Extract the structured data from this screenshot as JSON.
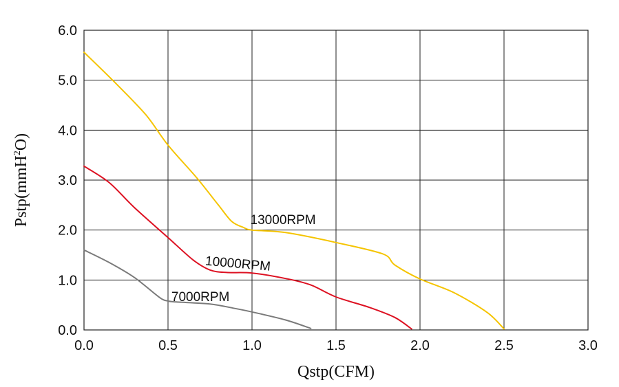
{
  "chart_data": {
    "type": "line",
    "title": "",
    "xlabel": "Qstp(CFM)",
    "ylabel": "Pstp(mmH2O)",
    "ylabel_main": "Pstp(mmH",
    "ylabel_sup": "2",
    "ylabel_tail": "O)",
    "xlim": [
      0,
      3.0
    ],
    "ylim": [
      0,
      6.0
    ],
    "xticks": [
      0,
      0.5,
      1.0,
      1.5,
      2.0,
      2.5,
      3.0
    ],
    "xtick_labels": [
      "0.0",
      "0.5",
      "1.0",
      "1.5",
      "2.0",
      "2.5",
      "3.0"
    ],
    "yticks": [
      0,
      1.0,
      2.0,
      3.0,
      4.0,
      5.0,
      6.0
    ],
    "ytick_labels": [
      "0.0",
      "1.0",
      "2.0",
      "3.0",
      "4.0",
      "5.0",
      "6.0"
    ],
    "grid": true,
    "series": [
      {
        "name": "13000RPM",
        "color": "#f5c400",
        "x": [
          0,
          0.2,
          0.37,
          0.5,
          0.67,
          0.8,
          0.88,
          0.95,
          1.0,
          1.2,
          1.5,
          1.78,
          1.85,
          2.0,
          2.2,
          2.4,
          2.5
        ],
        "y": [
          5.56,
          4.9,
          4.3,
          3.7,
          3.05,
          2.5,
          2.17,
          2.05,
          2.0,
          1.95,
          1.75,
          1.52,
          1.3,
          1.02,
          0.75,
          0.35,
          0.02
        ]
      },
      {
        "name": "10000RPM",
        "color": "#dd1122",
        "x": [
          0,
          0.15,
          0.3,
          0.5,
          0.65,
          0.75,
          0.85,
          1.0,
          1.2,
          1.35,
          1.5,
          1.7,
          1.85,
          1.95
        ],
        "y": [
          3.28,
          2.95,
          2.45,
          1.85,
          1.4,
          1.2,
          1.15,
          1.14,
          1.03,
          0.9,
          0.66,
          0.45,
          0.25,
          0.02
        ]
      },
      {
        "name": "7000RPM",
        "color": "#7a7a7a",
        "x": [
          0,
          0.15,
          0.3,
          0.45,
          0.5,
          0.55,
          0.75,
          0.9,
          1.0,
          1.2,
          1.35
        ],
        "y": [
          1.6,
          1.35,
          1.05,
          0.65,
          0.58,
          0.56,
          0.52,
          0.43,
          0.36,
          0.2,
          0.03
        ]
      }
    ],
    "annotations": [
      {
        "series": "13000RPM",
        "text": "13000RPM",
        "x": 0.99,
        "y": 2.12,
        "rotate": 0
      },
      {
        "series": "10000RPM",
        "text": "10000RPM",
        "x": 0.72,
        "y": 1.3,
        "rotate": 5
      },
      {
        "series": "7000RPM",
        "text": "7000RPM",
        "x": 0.52,
        "y": 0.58,
        "rotate": 0
      }
    ]
  }
}
